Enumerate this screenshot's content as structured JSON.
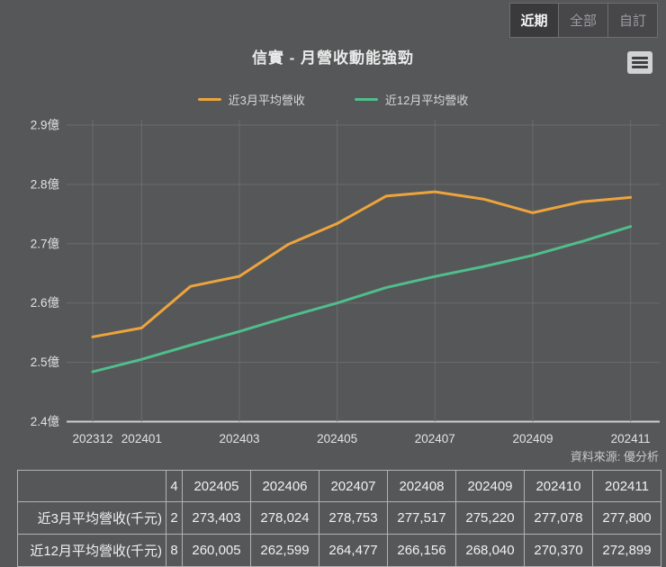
{
  "toolbar": {
    "buttons": [
      {
        "label": "近期",
        "selected": true
      },
      {
        "label": "全部",
        "selected": false
      },
      {
        "label": "自訂",
        "selected": false
      }
    ]
  },
  "chart": {
    "title": "信實 - 月營收動能強勁",
    "source_note": "資料來源: 優分析",
    "colors": {
      "background": "#565758",
      "gridline": "#6B6B6D",
      "axis_line": "#CFCFD1",
      "axis_text": "#E2E2E2",
      "series_3m": "#EDA43C",
      "series_12m": "#4FBE8C"
    }
  },
  "chart_data": {
    "type": "line",
    "title": "信實 - 月營收動能強勁",
    "unit": "千元",
    "x": [
      "202312",
      "202401",
      "202402",
      "202403",
      "202404",
      "202405",
      "202406",
      "202407",
      "202408",
      "202409",
      "202410",
      "202411"
    ],
    "x_tick_labels": [
      "202312",
      "202401",
      "202403",
      "202405",
      "202407",
      "202409",
      "202411"
    ],
    "y_tick_values": [
      290000,
      280000,
      270000,
      260000,
      250000,
      240000
    ],
    "y_tick_labels": [
      "2.9億",
      "2.8億",
      "2.7億",
      "2.6億",
      "2.5億",
      "2.4億"
    ],
    "ylim": [
      240000,
      290000
    ],
    "grid": true,
    "legend_position": "top",
    "series": [
      {
        "name": "近3月平均營收",
        "color": "#EDA43C",
        "values": [
          254300,
          255800,
          262800,
          264500,
          269900,
          273403,
          278024,
          278753,
          277517,
          275220,
          277078,
          277800
        ]
      },
      {
        "name": "近12月平均營收",
        "color": "#4FBE8C",
        "values": [
          248400,
          250500,
          252900,
          255200,
          257700,
          260005,
          262599,
          264477,
          266156,
          268040,
          270370,
          272899
        ]
      }
    ]
  },
  "table": {
    "corner_header": "",
    "clipped_column": {
      "header_fragment": "4",
      "row_fragments": [
        "2",
        "8"
      ]
    },
    "columns": [
      "202405",
      "202406",
      "202407",
      "202408",
      "202409",
      "202410",
      "202411"
    ],
    "rows": [
      {
        "label": "近3月平均營收(千元)",
        "values": [
          "273,403",
          "278,024",
          "278,753",
          "277,517",
          "275,220",
          "277,078",
          "277,800"
        ]
      },
      {
        "label": "近12月平均營收(千元)",
        "values": [
          "260,005",
          "262,599",
          "264,477",
          "266,156",
          "268,040",
          "270,370",
          "272,899"
        ]
      }
    ]
  }
}
